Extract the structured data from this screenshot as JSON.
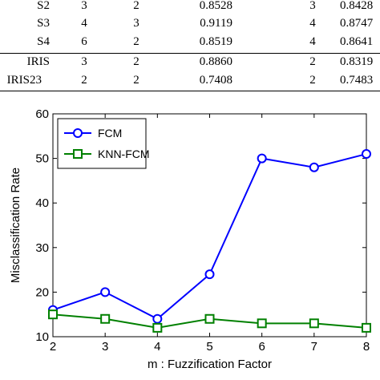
{
  "table": {
    "rows": [
      {
        "name": "S2",
        "c1": "3",
        "c2": "2",
        "c3": "0.8528",
        "c4": "3",
        "c5": "0.8428"
      },
      {
        "name": "S3",
        "c1": "4",
        "c2": "3",
        "c3": "0.9119",
        "c4": "4",
        "c5": "0.8747"
      },
      {
        "name": "S4",
        "c1": "6",
        "c2": "2",
        "c3": "0.8519",
        "c4": "4",
        "c5": "0.8641"
      },
      {
        "name": "IRIS",
        "c1": "3",
        "c2": "2",
        "c3": "0.8860",
        "c4": "2",
        "c5": "0.8319"
      },
      {
        "name": "IRIS23",
        "c1": "2",
        "c2": "2",
        "c3": "0.7408",
        "c4": "2",
        "c5": "0.7483"
      }
    ]
  },
  "chart_data": {
    "type": "line",
    "title": "",
    "xlabel": "m : Fuzzification Factor",
    "ylabel": "Misclassification Rate",
    "x": [
      2,
      3,
      4,
      5,
      6,
      7,
      8
    ],
    "xlim": [
      2,
      8
    ],
    "ylim": [
      10,
      60
    ],
    "xticks": [
      2,
      3,
      4,
      5,
      6,
      7,
      8
    ],
    "yticks": [
      10,
      20,
      30,
      40,
      50,
      60
    ],
    "grid": false,
    "legend_position": "top-left",
    "series": [
      {
        "name": "FCM",
        "values": [
          16,
          20,
          14,
          24,
          50,
          48,
          51
        ],
        "color": "#0000ff",
        "marker": "circle"
      },
      {
        "name": "KNN-FCM",
        "values": [
          15,
          14,
          12,
          14,
          13,
          13,
          12
        ],
        "color": "#008000",
        "marker": "square"
      }
    ]
  }
}
